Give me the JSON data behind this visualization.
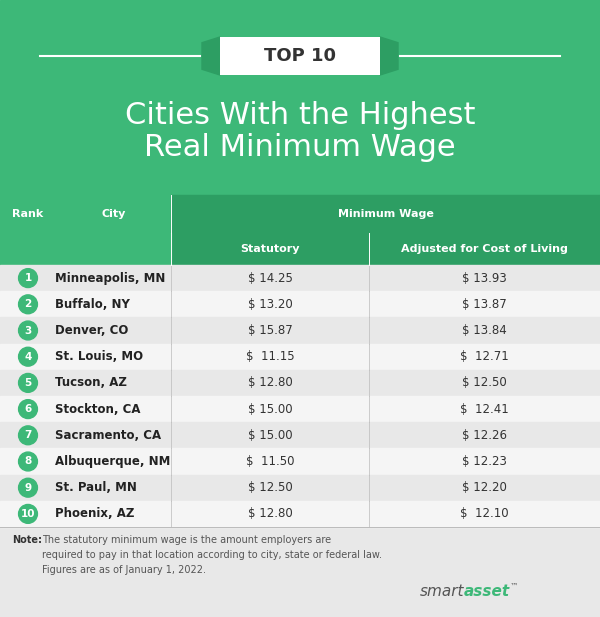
{
  "title_line1": "Cities With the Highest",
  "title_line2": "Real Minimum Wage",
  "top10_label": "TOP 10",
  "header_bg": "#3db878",
  "header_dark_bg": "#2d9e63",
  "row_light_bg": "#e8e8e8",
  "row_white_bg": "#f5f5f5",
  "note_bg": "#e0e0e0",
  "rank_circle_color": "#3db878",
  "ranks": [
    1,
    2,
    3,
    4,
    5,
    6,
    7,
    8,
    9,
    10
  ],
  "cities": [
    "Minneapolis, MN",
    "Buffalo, NY",
    "Denver, CO",
    "St. Louis, MO",
    "Tucson, AZ",
    "Stockton, CA",
    "Sacramento, CA",
    "Albuquerque, NM",
    "St. Paul, MN",
    "Phoenix, AZ"
  ],
  "statutory": [
    "$ 14.25",
    "$ 13.20",
    "$ 15.87",
    "$  11.15",
    "$ 12.80",
    "$ 15.00",
    "$ 15.00",
    "$  11.50",
    "$ 12.50",
    "$ 12.80"
  ],
  "adjusted": [
    "$ 13.93",
    "$ 13.87",
    "$ 13.84",
    "$  12.71",
    "$ 12.50",
    "$  12.41",
    "$ 12.26",
    "$ 12.23",
    "$ 12.20",
    "$  12.10"
  ],
  "note_bold": "Note:",
  "note_text": " The statutory minimum wage is the amount employers are\nrequired to pay in that location according to city, state or federal law.\nFigures are as of January 1, 2022.",
  "col_divider": 0.285,
  "col_stat_divider": 0.615
}
